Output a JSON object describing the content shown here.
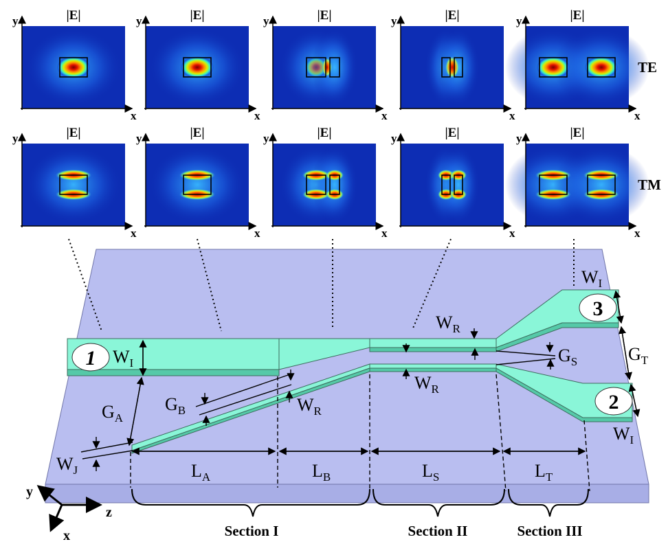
{
  "field_label": "|E|",
  "axis": {
    "x": "x",
    "y": "y",
    "z": "z"
  },
  "rows": [
    {
      "mode": "TE",
      "panels": [
        {
          "kind": "single-wide"
        },
        {
          "kind": "single-wide"
        },
        {
          "kind": "asym-pair"
        },
        {
          "kind": "narrow-pair"
        },
        {
          "kind": "separated-pair"
        }
      ]
    },
    {
      "mode": "TM",
      "panels": [
        {
          "kind": "single-wide"
        },
        {
          "kind": "single-wide"
        },
        {
          "kind": "asym-pair"
        },
        {
          "kind": "narrow-pair"
        },
        {
          "kind": "separated-pair"
        }
      ]
    }
  ],
  "device": {
    "ports": [
      "1",
      "2",
      "3"
    ],
    "width_labels": {
      "WI": {
        "main": "W",
        "sub": "I"
      },
      "WR": {
        "main": "W",
        "sub": "R"
      },
      "WJ": {
        "main": "W",
        "sub": "J"
      }
    },
    "gap_labels": {
      "GA": {
        "main": "G",
        "sub": "A"
      },
      "GB": {
        "main": "G",
        "sub": "B"
      },
      "GS": {
        "main": "G",
        "sub": "S"
      },
      "GT": {
        "main": "G",
        "sub": "T"
      }
    },
    "length_labels": [
      {
        "main": "L",
        "sub": "A"
      },
      {
        "main": "L",
        "sub": "B"
      },
      {
        "main": "L",
        "sub": "S"
      },
      {
        "main": "L",
        "sub": "T"
      }
    ],
    "sections": [
      "Section I",
      "Section II",
      "Section III"
    ]
  },
  "colors": {
    "substrate_top": "#b7bcf0",
    "substrate_side": "#a9afe8",
    "waveguide": "#86f5d6",
    "field_background": "#0d2db4",
    "field_peak": "#d40000"
  }
}
